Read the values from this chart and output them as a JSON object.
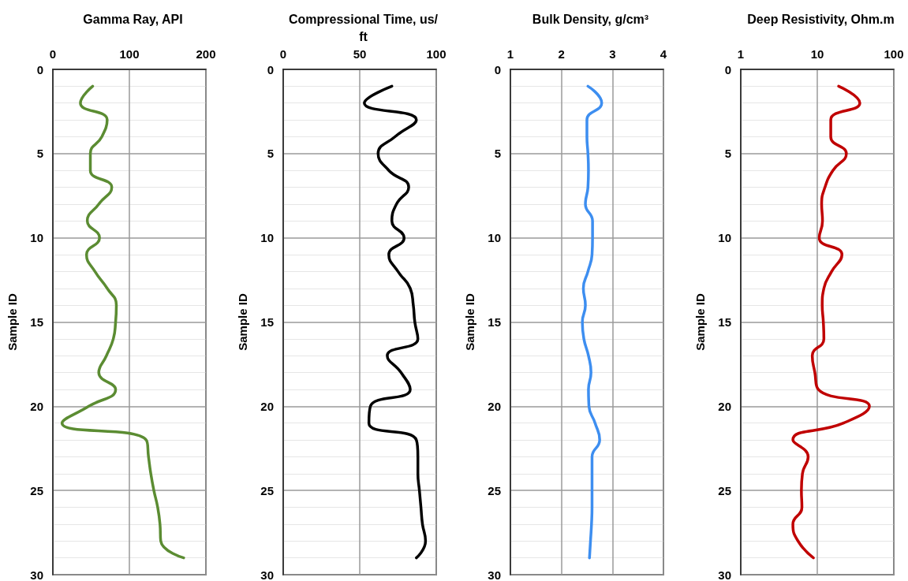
{
  "chart_data": [
    {
      "type": "line",
      "title": "Gamma Ray, API",
      "ylabel": "Sample ID",
      "xlim": [
        0,
        200
      ],
      "xticks": [
        0,
        100,
        200
      ],
      "ylim": [
        30,
        0
      ],
      "yticks": [
        0,
        5,
        10,
        15,
        20,
        25,
        30
      ],
      "grid": true,
      "marker": "none",
      "line_style": "solid",
      "series": [
        {
          "color": "#5b8c32",
          "x": [
            52,
            36,
            71,
            64,
            49,
            49,
            77,
            60,
            45,
            61,
            44,
            55,
            71,
            83,
            82,
            79,
            70,
            60,
            82,
            47,
            12,
            122,
            125,
            128,
            132,
            137,
            140,
            141,
            171
          ],
          "values": [
            1,
            2,
            3,
            4,
            5,
            6,
            7,
            8,
            9,
            10,
            11,
            12,
            13,
            14,
            15,
            16,
            17,
            18,
            19,
            20,
            21,
            22,
            23,
            24,
            25,
            26,
            27,
            28,
            29
          ]
        }
      ]
    },
    {
      "type": "line",
      "title": "Compressional Time, us/ft",
      "ylabel": "Sample ID",
      "xlim": [
        0,
        100
      ],
      "xticks": [
        0,
        50,
        100
      ],
      "ylim": [
        30,
        0
      ],
      "yticks": [
        0,
        5,
        10,
        15,
        20,
        25,
        30
      ],
      "grid": true,
      "marker": "none",
      "line_style": "solid",
      "series": [
        {
          "color": "#000000",
          "x": [
            71,
            53,
            87,
            73,
            62,
            69,
            82,
            74,
            71,
            79,
            69,
            75,
            83,
            85,
            86,
            88,
            68,
            77,
            83,
            57,
            56,
            87,
            88,
            88,
            89,
            90,
            91,
            93,
            87
          ],
          "values": [
            1,
            2,
            3,
            4,
            5,
            6,
            7,
            8,
            9,
            10,
            11,
            12,
            13,
            14,
            15,
            16,
            17,
            18,
            19,
            20,
            21,
            22,
            23,
            24,
            25,
            26,
            27,
            28,
            29
          ]
        }
      ]
    },
    {
      "type": "line",
      "title": "Bulk Density, g/cm³",
      "ylabel": "Sample ID",
      "xlim": [
        1,
        4
      ],
      "xticks": [
        1,
        2,
        3,
        4
      ],
      "ylim": [
        30,
        0
      ],
      "yticks": [
        0,
        5,
        10,
        15,
        20,
        25,
        30
      ],
      "grid": true,
      "marker": "none",
      "line_style": "solid",
      "series": [
        {
          "color": "#3d8ef0",
          "x": [
            2.52,
            2.79,
            2.5,
            2.5,
            2.52,
            2.53,
            2.52,
            2.47,
            2.61,
            2.61,
            2.6,
            2.52,
            2.43,
            2.47,
            2.41,
            2.44,
            2.53,
            2.58,
            2.53,
            2.54,
            2.66,
            2.75,
            2.6,
            2.6,
            2.6,
            2.6,
            2.59,
            2.57,
            2.55
          ],
          "values": [
            1,
            2,
            3,
            4,
            5,
            6,
            7,
            8,
            9,
            10,
            11,
            12,
            13,
            14,
            15,
            16,
            17,
            18,
            19,
            20,
            21,
            22,
            23,
            24,
            25,
            26,
            27,
            28,
            29
          ]
        }
      ]
    },
    {
      "type": "line",
      "title": "Deep Resistivity, Ohm.m",
      "ylabel": "Sample ID",
      "xlim": [
        1,
        100
      ],
      "xticks": [
        1,
        10,
        100
      ],
      "ylim": [
        30,
        0
      ],
      "yticks": [
        0,
        5,
        10,
        15,
        20,
        25,
        30
      ],
      "log": "x",
      "grid": true,
      "marker": "none",
      "line_style": "solid",
      "series": [
        {
          "color": "#c00000",
          "x": [
            19,
            36,
            15,
            15,
            24,
            16,
            12.6,
            11.4,
            11.7,
            10.6,
            21,
            15.4,
            12.2,
            11.6,
            12,
            12.2,
            8.6,
            9.3,
            10.3,
            48,
            22,
            4.8,
            7.6,
            6.4,
            6.2,
            6.3,
            4.8,
            5.6,
            8.9
          ],
          "values": [
            1,
            2,
            3,
            4,
            5,
            6,
            7,
            8,
            9,
            10,
            11,
            12,
            13,
            14,
            15,
            16,
            17,
            18,
            19,
            20,
            21,
            22,
            23,
            24,
            25,
            26,
            27,
            28,
            29
          ]
        }
      ]
    }
  ]
}
